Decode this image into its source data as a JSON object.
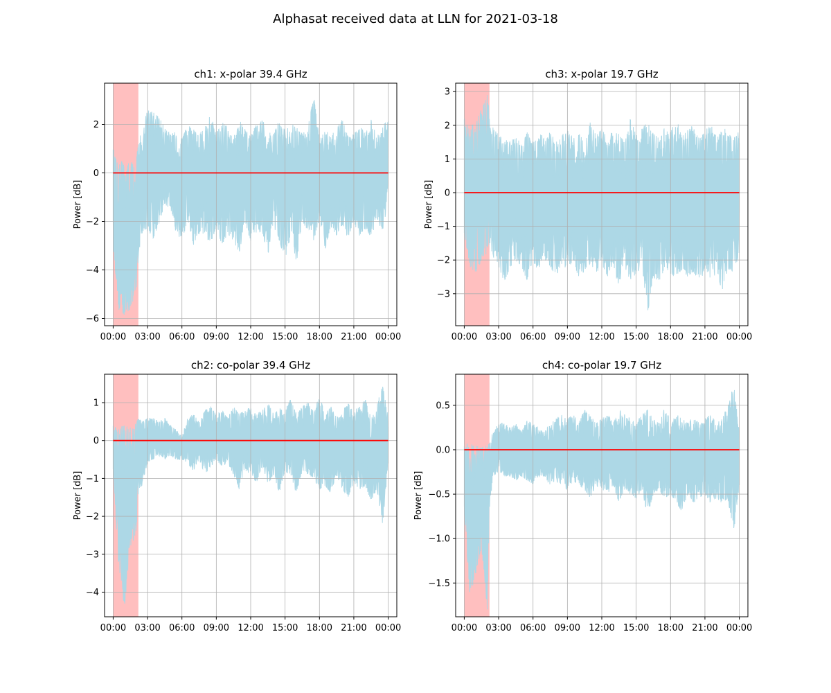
{
  "figure": {
    "title": "Alphasat received data at LLN for 2021-03-18"
  },
  "chart_data": [
    {
      "type": "line",
      "title": "ch1: x-polar 39.4 GHz",
      "xlabel": "",
      "ylabel": "Power [dB]",
      "x_unit": "hours",
      "xlim": [
        -0.75,
        24.75
      ],
      "ylim": [
        -6.3,
        3.7
      ],
      "xtick_values": [
        0,
        3,
        6,
        9,
        12,
        15,
        18,
        21,
        24
      ],
      "xtick_labels": [
        "00:00",
        "03:00",
        "06:00",
        "09:00",
        "12:00",
        "15:00",
        "18:00",
        "21:00",
        "00:00"
      ],
      "yticks": [
        -6,
        -4,
        -2,
        0,
        2
      ],
      "grid": true,
      "shaded_interval": {
        "x": [
          0,
          2.2
        ],
        "color": "#ffbfbf"
      },
      "series": [
        {
          "style": "band",
          "color": "#add8e6",
          "x": [
            0,
            0.5,
            1,
            1.5,
            2,
            2.2,
            2.5,
            3,
            3.5,
            4,
            4.5,
            5,
            5.5,
            6,
            6.5,
            7,
            7.5,
            8,
            8.5,
            9,
            9.5,
            10,
            10.5,
            11,
            11.5,
            12,
            12.5,
            13,
            13.5,
            14,
            14.5,
            15,
            15.5,
            16,
            16.5,
            17,
            17.5,
            18,
            18.5,
            19,
            19.5,
            20,
            20.5,
            21,
            21.5,
            22,
            22.5,
            23,
            23.5,
            24
          ],
          "upper": [
            1.0,
            0.6,
            0.4,
            0.4,
            0.6,
            1.2,
            1.8,
            2.6,
            2.5,
            2.3,
            1.9,
            1.6,
            1.7,
            1.4,
            2.0,
            1.8,
            1.6,
            1.9,
            2.4,
            1.7,
            2.1,
            1.9,
            1.5,
            2.2,
            1.8,
            1.6,
            2.0,
            2.3,
            1.7,
            1.6,
            2.2,
            1.8,
            1.9,
            2.2,
            1.6,
            1.9,
            3.2,
            1.4,
            1.8,
            1.5,
            1.9,
            2.2,
            1.5,
            1.6,
            2.0,
            1.6,
            2.2,
            1.5,
            1.9,
            2.3
          ],
          "lower": [
            -3.0,
            -5.7,
            -5.9,
            -5.6,
            -4.9,
            -3.5,
            -2.5,
            -2.4,
            -2.7,
            -2.1,
            -1.3,
            -1.5,
            -2.5,
            -2.8,
            -2.0,
            -3.1,
            -2.6,
            -2.5,
            -3.0,
            -2.2,
            -3.0,
            -2.5,
            -2.8,
            -3.3,
            -2.1,
            -2.8,
            -2.5,
            -2.4,
            -3.4,
            -2.2,
            -2.8,
            -3.6,
            -2.6,
            -3.7,
            -2.0,
            -2.4,
            -2.8,
            -1.9,
            -3.2,
            -2.2,
            -2.6,
            -2.2,
            -2.7,
            -2.1,
            -2.6,
            -2.3,
            -2.8,
            -1.8,
            -2.5,
            -1.2
          ]
        },
        {
          "style": "line",
          "color": "#ff0000",
          "x": [
            0,
            24
          ],
          "y": [
            0,
            0
          ]
        }
      ]
    },
    {
      "type": "line",
      "title": "ch3: x-polar 19.7 GHz",
      "xlabel": "",
      "ylabel": "Power [dB]",
      "x_unit": "hours",
      "xlim": [
        -0.75,
        24.75
      ],
      "ylim": [
        -3.95,
        3.25
      ],
      "xtick_values": [
        0,
        3,
        6,
        9,
        12,
        15,
        18,
        21,
        24
      ],
      "xtick_labels": [
        "00:00",
        "03:00",
        "06:00",
        "09:00",
        "12:00",
        "15:00",
        "18:00",
        "21:00",
        "00:00"
      ],
      "yticks": [
        -3,
        -2,
        -1,
        0,
        1,
        2,
        3
      ],
      "grid": true,
      "shaded_interval": {
        "x": [
          0,
          2.2
        ],
        "color": "#ffbfbf"
      },
      "series": [
        {
          "style": "band",
          "color": "#add8e6",
          "x": [
            0,
            0.5,
            1,
            1.5,
            2,
            2.2,
            2.5,
            3,
            3.5,
            4,
            4.5,
            5,
            5.5,
            6,
            6.5,
            7,
            7.5,
            8,
            8.5,
            9,
            9.5,
            10,
            10.5,
            11,
            11.5,
            12,
            12.5,
            13,
            13.5,
            14,
            14.5,
            15,
            15.5,
            16,
            16.5,
            17,
            17.5,
            18,
            18.5,
            19,
            19.5,
            20,
            20.5,
            21,
            21.5,
            22,
            22.5,
            23,
            23.5,
            24
          ],
          "upper": [
            2.2,
            2.0,
            2.1,
            2.5,
            2.9,
            2.4,
            2.0,
            1.7,
            1.6,
            1.5,
            1.7,
            1.4,
            1.8,
            1.5,
            1.9,
            1.6,
            1.8,
            1.5,
            1.7,
            1.9,
            1.6,
            1.8,
            1.5,
            2.1,
            1.7,
            1.9,
            1.6,
            2.0,
            1.8,
            1.5,
            2.2,
            1.7,
            1.9,
            2.1,
            1.8,
            1.6,
            2.0,
            1.8,
            2.2,
            1.7,
            1.9,
            2.0,
            1.6,
            1.8,
            2.1,
            1.7,
            2.0,
            1.8,
            1.6,
            1.9
          ],
          "lower": [
            -1.2,
            -2.2,
            -2.4,
            -2.0,
            -1.8,
            -1.5,
            -1.9,
            -2.2,
            -2.7,
            -2.2,
            -2.0,
            -2.3,
            -2.6,
            -2.1,
            -2.4,
            -2.0,
            -2.2,
            -2.5,
            -2.2,
            -2.3,
            -2.0,
            -2.6,
            -2.3,
            -2.1,
            -2.4,
            -2.2,
            -2.5,
            -2.1,
            -2.9,
            -2.3,
            -2.6,
            -2.4,
            -2.2,
            -3.6,
            -2.5,
            -2.7,
            -2.2,
            -2.4,
            -2.6,
            -2.3,
            -2.5,
            -2.4,
            -2.8,
            -2.2,
            -2.6,
            -2.4,
            -2.9,
            -2.3,
            -2.4,
            -1.8
          ]
        },
        {
          "style": "line",
          "color": "#ff0000",
          "x": [
            0,
            24
          ],
          "y": [
            0,
            0
          ]
        }
      ]
    },
    {
      "type": "line",
      "title": "ch2: co-polar 39.4 GHz",
      "xlabel": "",
      "ylabel": "Power [dB]",
      "x_unit": "hours",
      "xlim": [
        -0.75,
        24.75
      ],
      "ylim": [
        -4.65,
        1.75
      ],
      "xtick_values": [
        0,
        3,
        6,
        9,
        12,
        15,
        18,
        21,
        24
      ],
      "xtick_labels": [
        "00:00",
        "03:00",
        "06:00",
        "09:00",
        "12:00",
        "15:00",
        "18:00",
        "21:00",
        "00:00"
      ],
      "yticks": [
        -4,
        -3,
        -2,
        -1,
        0,
        1
      ],
      "grid": true,
      "shaded_interval": {
        "x": [
          0,
          2.2
        ],
        "color": "#ffbfbf"
      },
      "series": [
        {
          "style": "band",
          "color": "#add8e6",
          "x": [
            0,
            0.5,
            1,
            1.5,
            2,
            2.2,
            2.5,
            3,
            3.5,
            4,
            4.5,
            5,
            5.5,
            6,
            6.5,
            7,
            7.5,
            8,
            8.5,
            9,
            9.5,
            10,
            10.5,
            11,
            11.5,
            12,
            12.5,
            13,
            13.5,
            14,
            14.5,
            15,
            15.5,
            16,
            16.5,
            17,
            17.5,
            18,
            18.5,
            19,
            19.5,
            20,
            20.5,
            21,
            21.5,
            22,
            22.5,
            23,
            23.5,
            24
          ],
          "upper": [
            0.4,
            0.3,
            0.5,
            0.4,
            0.5,
            0.6,
            0.5,
            0.6,
            0.6,
            0.5,
            0.6,
            0.4,
            0.3,
            0.1,
            0.6,
            0.7,
            0.5,
            0.8,
            0.9,
            0.7,
            0.8,
            0.6,
            0.9,
            0.7,
            0.8,
            0.9,
            0.7,
            0.8,
            1.0,
            0.7,
            0.9,
            0.8,
            1.1,
            0.7,
            0.9,
            1.0,
            0.8,
            1.2,
            0.7,
            0.9,
            0.6,
            0.8,
            1.0,
            0.8,
            0.9,
            1.1,
            0.6,
            0.9,
            1.5,
            0.6
          ],
          "lower": [
            -0.8,
            -3.5,
            -4.4,
            -2.8,
            -2.5,
            -1.5,
            -1.2,
            -0.6,
            -0.5,
            -0.4,
            -0.5,
            -0.4,
            -0.5,
            -0.5,
            -0.6,
            -0.8,
            -0.5,
            -0.9,
            -0.7,
            -0.5,
            -0.7,
            -0.6,
            -0.9,
            -1.3,
            -0.8,
            -0.9,
            -1.1,
            -0.7,
            -1.2,
            -0.9,
            -1.4,
            -0.8,
            -1.0,
            -1.4,
            -0.8,
            -0.9,
            -1.0,
            -1.3,
            -1.2,
            -1.4,
            -0.9,
            -1.3,
            -1.5,
            -1.1,
            -1.3,
            -1.2,
            -1.6,
            -1.3,
            -2.3,
            -0.6
          ]
        },
        {
          "style": "line",
          "color": "#ff0000",
          "x": [
            0,
            24
          ],
          "y": [
            0,
            0
          ]
        }
      ]
    },
    {
      "type": "line",
      "title": "ch4: co-polar 19.7 GHz",
      "xlabel": "",
      "ylabel": "Power [dB]",
      "x_unit": "hours",
      "xlim": [
        -0.75,
        24.75
      ],
      "ylim": [
        -1.88,
        0.85
      ],
      "xtick_values": [
        0,
        3,
        6,
        9,
        12,
        15,
        18,
        21,
        24
      ],
      "xtick_labels": [
        "00:00",
        "03:00",
        "06:00",
        "09:00",
        "12:00",
        "15:00",
        "18:00",
        "21:00",
        "00:00"
      ],
      "yticks": [
        -1.5,
        -1.0,
        -0.5,
        0.0,
        0.5
      ],
      "ytick_labels": [
        "−1.5",
        "−1.0",
        "−0.5",
        "0.0",
        "0.5"
      ],
      "grid": true,
      "shaded_interval": {
        "x": [
          0,
          2.2
        ],
        "color": "#ffbfbf"
      },
      "series": [
        {
          "style": "band",
          "color": "#add8e6",
          "x": [
            0,
            0.5,
            1,
            1.5,
            2,
            2.2,
            2.5,
            3,
            3.5,
            4,
            4.5,
            5,
            5.5,
            6,
            6.5,
            7,
            7.5,
            8,
            8.5,
            9,
            9.5,
            10,
            10.5,
            11,
            11.5,
            12,
            12.5,
            13,
            13.5,
            14,
            14.5,
            15,
            15.5,
            16,
            16.5,
            17,
            17.5,
            18,
            18.5,
            19,
            19.5,
            20,
            20.5,
            21,
            21.5,
            22,
            22.5,
            23,
            23.5,
            24
          ],
          "upper": [
            0.05,
            0.08,
            0.05,
            0.03,
            0.05,
            0.1,
            0.2,
            0.3,
            0.3,
            0.25,
            0.3,
            0.2,
            0.35,
            0.3,
            0.25,
            0.2,
            0.3,
            0.35,
            0.4,
            0.35,
            0.4,
            0.3,
            0.45,
            0.4,
            0.3,
            0.35,
            0.4,
            0.3,
            0.45,
            0.4,
            0.35,
            0.3,
            0.4,
            0.45,
            0.35,
            0.3,
            0.5,
            0.3,
            0.4,
            0.35,
            0.3,
            0.38,
            0.3,
            0.35,
            0.4,
            0.3,
            0.35,
            0.5,
            0.75,
            0.3
          ],
          "lower": [
            -0.7,
            -1.65,
            -1.4,
            -1.1,
            -1.8,
            -0.7,
            -0.3,
            -0.25,
            -0.3,
            -0.3,
            -0.35,
            -0.3,
            -0.35,
            -0.4,
            -0.3,
            -0.3,
            -0.4,
            -0.35,
            -0.4,
            -0.45,
            -0.35,
            -0.4,
            -0.45,
            -0.55,
            -0.4,
            -0.45,
            -0.5,
            -0.4,
            -0.6,
            -0.45,
            -0.5,
            -0.55,
            -0.45,
            -0.75,
            -0.5,
            -0.45,
            -0.55,
            -0.5,
            -0.6,
            -0.7,
            -0.5,
            -0.6,
            -0.55,
            -0.5,
            -0.6,
            -0.55,
            -0.6,
            -0.55,
            -0.95,
            -0.4
          ]
        },
        {
          "style": "line",
          "color": "#ff0000",
          "x": [
            0,
            24
          ],
          "y": [
            0,
            0
          ]
        }
      ]
    }
  ]
}
